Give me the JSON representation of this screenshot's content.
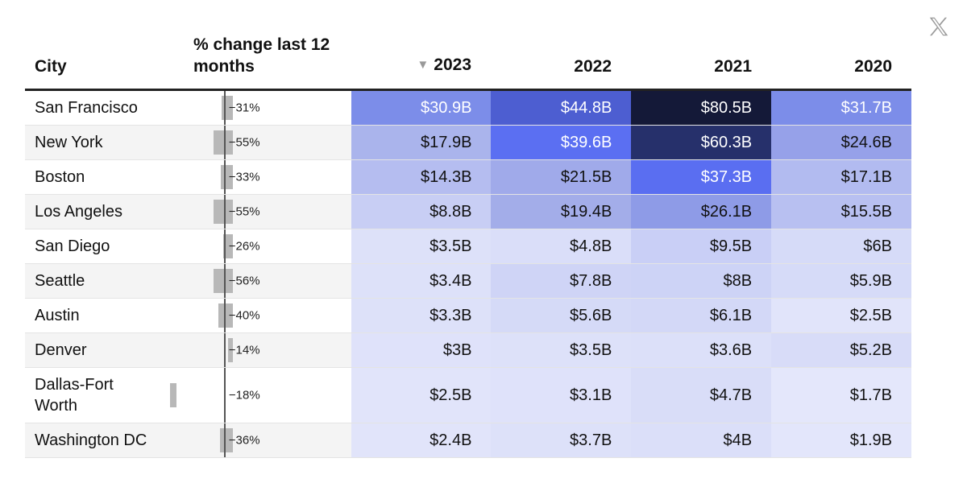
{
  "header": {
    "city": "City",
    "change": "% change last 12 months",
    "sort_arrow": "▼",
    "years": [
      "2023",
      "2022",
      "2021",
      "2020"
    ]
  },
  "close_icon": "x-logo-icon",
  "rows": [
    {
      "city": "San Francisco",
      "change": "−31%",
      "change_value": -31,
      "values": [
        "$30.9B",
        "$44.8B",
        "$80.5B",
        "$31.7B"
      ],
      "colors": [
        "#7c8de9",
        "#4d5ed1",
        "#141938",
        "#7c8de9"
      ],
      "text_colors": [
        "#ffffff",
        "#ffffff",
        "#ffffff",
        "#ffffff"
      ]
    },
    {
      "city": "New York",
      "change": "−55%",
      "change_value": -55,
      "values": [
        "$17.9B",
        "$39.6B",
        "$60.3B",
        "$24.6B"
      ],
      "colors": [
        "#aab4ec",
        "#5b6ff2",
        "#26306b",
        "#96a1e9"
      ],
      "text_colors": [
        "#111111",
        "#ffffff",
        "#ffffff",
        "#111111"
      ]
    },
    {
      "city": "Boston",
      "change": "−33%",
      "change_value": -33,
      "values": [
        "$14.3B",
        "$21.5B",
        "$37.3B",
        "$17.1B"
      ],
      "colors": [
        "#b5bdf0",
        "#a0aaea",
        "#5a6ef1",
        "#b2bbf0"
      ],
      "text_colors": [
        "#111111",
        "#111111",
        "#ffffff",
        "#111111"
      ]
    },
    {
      "city": "Los Angeles",
      "change": "−55%",
      "change_value": -55,
      "values": [
        "$8.8B",
        "$19.4B",
        "$26.1B",
        "$15.5B"
      ],
      "colors": [
        "#c8cef4",
        "#a3ade9",
        "#8e9be7",
        "#b8c0f1"
      ],
      "text_colors": [
        "#111111",
        "#111111",
        "#111111",
        "#111111"
      ]
    },
    {
      "city": "San Diego",
      "change": "−26%",
      "change_value": -26,
      "values": [
        "$3.5B",
        "$4.8B",
        "$9.5B",
        "$6B"
      ],
      "colors": [
        "#dde1f9",
        "#dadef9",
        "#c9cff6",
        "#d6dbf8"
      ],
      "text_colors": [
        "#111111",
        "#111111",
        "#111111",
        "#111111"
      ]
    },
    {
      "city": "Seattle",
      "change": "−56%",
      "change_value": -56,
      "values": [
        "$3.4B",
        "$7.8B",
        "$8B",
        "$5.9B"
      ],
      "colors": [
        "#dde1f9",
        "#cfd4f6",
        "#cdd3f6",
        "#d6dbf8"
      ],
      "text_colors": [
        "#111111",
        "#111111",
        "#111111",
        "#111111"
      ]
    },
    {
      "city": "Austin",
      "change": "−40%",
      "change_value": -40,
      "values": [
        "$3.3B",
        "$5.6B",
        "$6.1B",
        "$2.5B"
      ],
      "colors": [
        "#dde1f9",
        "#d5daf7",
        "#d3d8f7",
        "#e1e4fa"
      ],
      "text_colors": [
        "#111111",
        "#111111",
        "#111111",
        "#111111"
      ]
    },
    {
      "city": "Denver",
      "change": "−14%",
      "change_value": -14,
      "values": [
        "$3B",
        "$3.5B",
        "$3.6B",
        "$5.2B"
      ],
      "colors": [
        "#dfe2fa",
        "#dde1f9",
        "#dce0f9",
        "#d8dcf8"
      ],
      "text_colors": [
        "#111111",
        "#111111",
        "#111111",
        "#111111"
      ]
    },
    {
      "city": "Dallas-Fort Worth",
      "change": "−18%",
      "change_value": -18,
      "values": [
        "$2.5B",
        "$3.1B",
        "$4.7B",
        "$1.7B"
      ],
      "colors": [
        "#e1e4fa",
        "#dfe2fa",
        "#d9ddf8",
        "#e4e7fb"
      ],
      "text_colors": [
        "#111111",
        "#111111",
        "#111111",
        "#111111"
      ]
    },
    {
      "city": "Washington DC",
      "change": "−36%",
      "change_value": -36,
      "values": [
        "$2.4B",
        "$3.7B",
        "$4B",
        "$1.9B"
      ],
      "colors": [
        "#e1e4fa",
        "#dde1f9",
        "#dbdff9",
        "#e3e6fb"
      ],
      "text_colors": [
        "#111111",
        "#111111",
        "#111111",
        "#111111"
      ]
    }
  ]
}
